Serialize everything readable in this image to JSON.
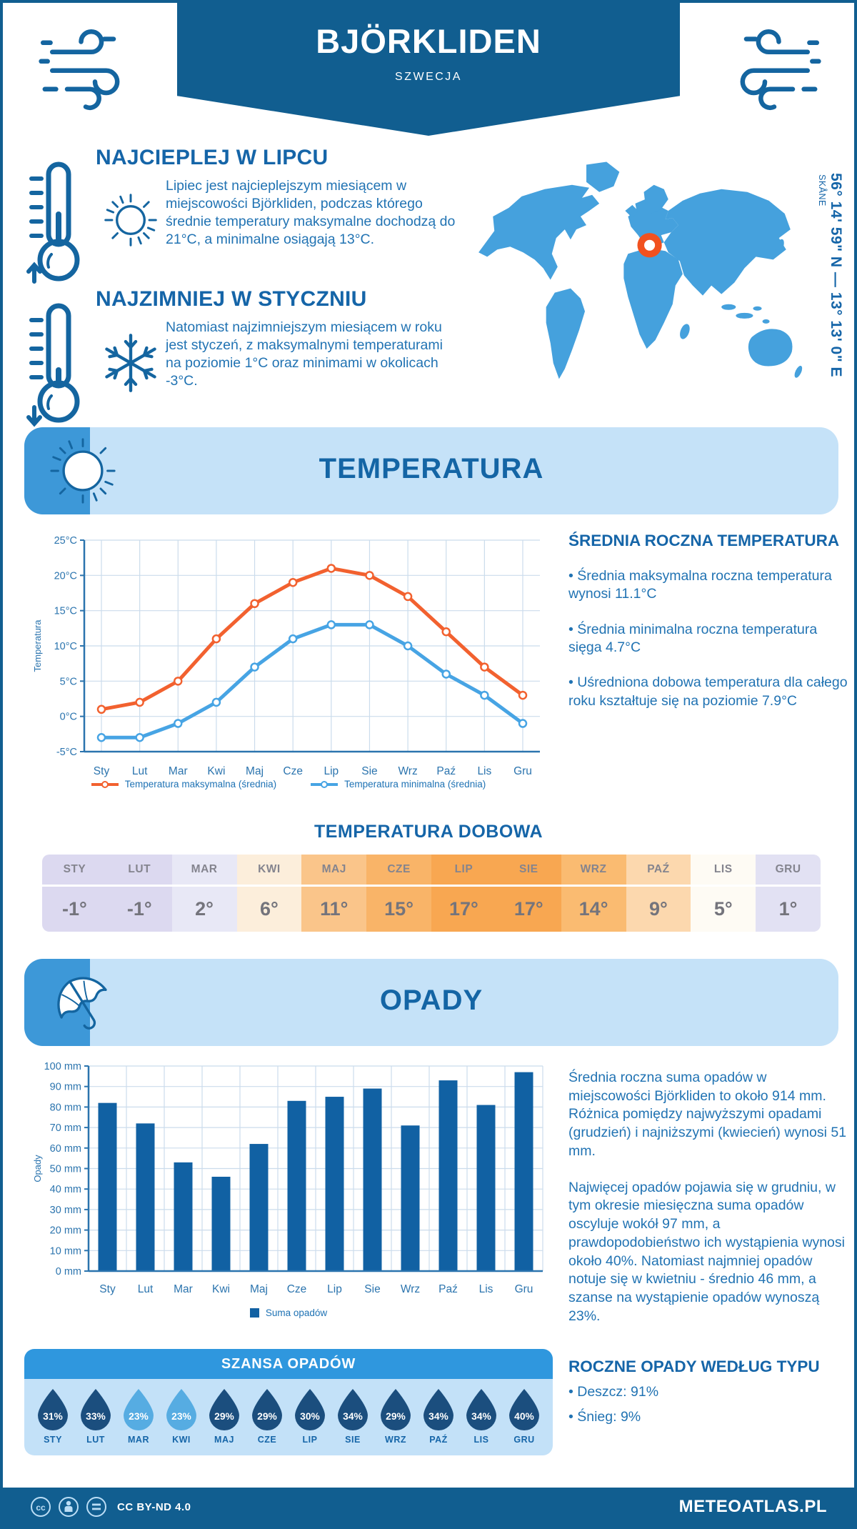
{
  "header": {
    "title": "BJÖRKLIDEN",
    "subtitle": "SZWECJA"
  },
  "highlights": [
    {
      "title": "NAJCIEPLEJ W LIPCU",
      "text": "Lipiec jest najcieplejszym miesiącem w miejscowości Björkliden, podczas którego średnie temperatury maksymalne dochodzą do 21°C, a minimalne osiągają 13°C."
    },
    {
      "title": "NAJZIMNIEJ W STYCZNIU",
      "text": "Natomiast najzimniejszym miesiącem w roku jest styczeń, z maksymalnymi temperaturami na poziomie 1°C oraz minimami w okolicach -3°C."
    }
  ],
  "map": {
    "coordinates": "56° 14' 59\" N — 13° 13' 0\" E",
    "region": "SKÅNE",
    "land_color": "#45A1DD",
    "marker_color": "#F1511F"
  },
  "temperature_section": {
    "title": "TEMPERATURA",
    "annual": {
      "heading": "ŚREDNIA ROCZNA TEMPERATURA",
      "bullets": [
        "Średnia maksymalna roczna temperatura wynosi 11.1°C",
        "Średnia minimalna roczna temperatura sięga 4.7°C",
        "Uśredniona dobowa temperatura dla całego roku kształtuje się na poziomie 7.9°C"
      ]
    },
    "daily": {
      "heading": "TEMPERATURA DOBOWA",
      "months": [
        "STY",
        "LUT",
        "MAR",
        "KWI",
        "MAJ",
        "CZE",
        "LIP",
        "SIE",
        "WRZ",
        "PAŹ",
        "LIS",
        "GRU"
      ],
      "values": [
        "-1°",
        "-1°",
        "2°",
        "6°",
        "11°",
        "15°",
        "17°",
        "17°",
        "14°",
        "9°",
        "5°",
        "1°"
      ],
      "cell_colors": [
        "#DCD9F0",
        "#DCD9F0",
        "#E8E8F6",
        "#FCEEDB",
        "#FAC58A",
        "#F9B468",
        "#F8A751",
        "#F8A751",
        "#FABB71",
        "#FCD8AE",
        "#FEFBF4",
        "#E2E1F3"
      ]
    }
  },
  "precipitation_section": {
    "title": "OPADY",
    "paragraph1": "Średnia roczna suma opadów w miejscowości Björkliden to około 914 mm. Różnica pomiędzy najwyższymi opadami (grudzień) i najniższymi (kwiecień) wynosi 51 mm.",
    "paragraph2": "Najwięcej opadów pojawia się w grudniu, w tym okresie miesięczna suma opadów oscyluje wokół 97 mm, a prawdopodobieństwo ich wystąpienia wynosi około 40%. Natomiast najmniej opadów notuje się w kwietniu - średnio 46 mm, a szanse na wystąpienie opadów wynoszą 23%.",
    "type_heading": "ROCZNE OPADY WEDŁUG TYPU",
    "type_bullets": [
      "Deszcz: 91%",
      "Śnieg: 9%"
    ],
    "chance": {
      "heading": "SZANSA OPADÓW",
      "months": [
        "STY",
        "LUT",
        "MAR",
        "KWI",
        "MAJ",
        "CZE",
        "LIP",
        "SIE",
        "WRZ",
        "PAŹ",
        "LIS",
        "GRU"
      ],
      "values": [
        "31%",
        "33%",
        "23%",
        "23%",
        "29%",
        "29%",
        "30%",
        "34%",
        "29%",
        "34%",
        "34%",
        "40%"
      ],
      "light_flags": [
        false,
        false,
        true,
        true,
        false,
        false,
        false,
        false,
        false,
        false,
        false,
        false
      ],
      "drop_dark": "#1B4E7E",
      "drop_light": "#56ACE2"
    }
  },
  "chart_data": [
    {
      "type": "line",
      "categories": [
        "Sty",
        "Lut",
        "Mar",
        "Kwi",
        "Maj",
        "Cze",
        "Lip",
        "Sie",
        "Wrz",
        "Paź",
        "Lis",
        "Gru"
      ],
      "series": [
        {
          "name": "Temperatura maksymalna (średnia)",
          "color": "#F2612F",
          "values": [
            1,
            2,
            5,
            11,
            16,
            19,
            21,
            20,
            17,
            12,
            7,
            3
          ]
        },
        {
          "name": "Temperatura minimalna (średnia)",
          "color": "#47A4E4",
          "values": [
            -3,
            -3,
            -1,
            2,
            7,
            11,
            13,
            13,
            10,
            6,
            3,
            -1
          ]
        }
      ],
      "ylabel": "Temperatura",
      "ylim": [
        -5,
        25
      ],
      "y_step": 5,
      "y_suffix": "°C",
      "grid": true,
      "grid_color": "#CBDCEC",
      "axis_color": "#2B74AE",
      "legend_position": "bottom"
    },
    {
      "type": "bar",
      "categories": [
        "Sty",
        "Lut",
        "Mar",
        "Kwi",
        "Maj",
        "Cze",
        "Lip",
        "Sie",
        "Wrz",
        "Paź",
        "Lis",
        "Gru"
      ],
      "series": [
        {
          "name": "Suma opadów",
          "color": "#1161A3",
          "values": [
            82,
            72,
            53,
            46,
            62,
            83,
            85,
            89,
            71,
            93,
            81,
            97
          ]
        }
      ],
      "ylabel": "Opady",
      "ylim": [
        0,
        100
      ],
      "y_step": 10,
      "y_suffix": " mm",
      "grid": true,
      "grid_color": "#CBDCEC",
      "axis_color": "#2B74AE",
      "legend_position": "bottom"
    }
  ],
  "footer": {
    "license": "CC BY-ND 4.0",
    "site": "METEOATLAS.PL"
  }
}
